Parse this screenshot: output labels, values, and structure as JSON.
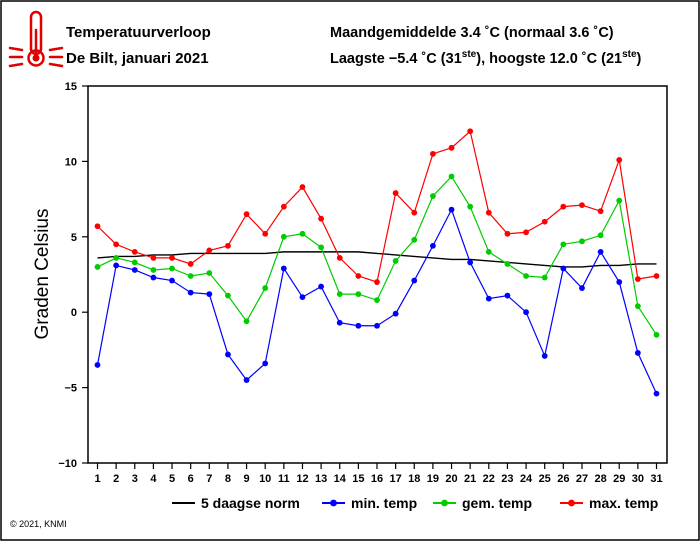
{
  "header": {
    "title": "Temperatuurverloop",
    "subtitle": "De Bilt, januari 2021",
    "line1": "Maandgemiddelde 3.4 ˚C (normaal 3.6 ˚C)",
    "line2_main": "Laagste −5.4 ˚C (31",
    "line2_sup1": "ste",
    "line2_mid": "), hoogste 12.0 ˚C (21",
    "line2_sup2": "ste",
    "line2_end": ")"
  },
  "footer": {
    "copyright": "© 2021, KNMI"
  },
  "chart_data": {
    "type": "line",
    "title": "",
    "xlabel": "",
    "ylabel": "Graden Celsius",
    "xlim": [
      1,
      31
    ],
    "ylim": [
      -10,
      15
    ],
    "yticks": [
      -10,
      -5,
      0,
      5,
      10,
      15
    ],
    "x": [
      1,
      2,
      3,
      4,
      5,
      6,
      7,
      8,
      9,
      10,
      11,
      12,
      13,
      14,
      15,
      16,
      17,
      18,
      19,
      20,
      21,
      22,
      23,
      24,
      25,
      26,
      27,
      28,
      29,
      30,
      31
    ],
    "grid": false,
    "legend_position": "bottom",
    "series": [
      {
        "name": "5 daagse norm",
        "color": "#000000",
        "marker": false,
        "values": [
          3.6,
          3.7,
          3.7,
          3.8,
          3.8,
          3.9,
          3.9,
          3.9,
          3.9,
          3.9,
          4.0,
          4.0,
          4.0,
          4.0,
          4.0,
          3.9,
          3.8,
          3.7,
          3.6,
          3.5,
          3.5,
          3.4,
          3.3,
          3.2,
          3.1,
          3.0,
          3.0,
          3.1,
          3.1,
          3.2,
          3.2
        ]
      },
      {
        "name": "min. temp",
        "color": "#0000ff",
        "marker": true,
        "values": [
          -3.5,
          3.1,
          2.8,
          2.3,
          2.1,
          1.3,
          1.2,
          -2.8,
          -4.5,
          -3.4,
          2.9,
          1.0,
          1.7,
          -0.7,
          -0.9,
          -0.9,
          -0.1,
          2.1,
          4.4,
          6.8,
          3.3,
          0.9,
          1.1,
          0.0,
          -2.9,
          2.9,
          1.6,
          4.0,
          2.0,
          -2.7,
          -5.4
        ]
      },
      {
        "name": "gem. temp",
        "color": "#00cc00",
        "marker": true,
        "values": [
          3.0,
          3.6,
          3.3,
          2.8,
          2.9,
          2.4,
          2.6,
          1.1,
          -0.6,
          1.6,
          5.0,
          5.2,
          4.3,
          1.2,
          1.2,
          0.8,
          3.4,
          4.8,
          7.7,
          9.0,
          7.0,
          4.0,
          3.2,
          2.4,
          2.3,
          4.5,
          4.7,
          5.1,
          7.4,
          0.4,
          -1.5
        ]
      },
      {
        "name": "max. temp",
        "color": "#ff0000",
        "marker": true,
        "values": [
          5.7,
          4.5,
          4.0,
          3.6,
          3.6,
          3.2,
          4.1,
          4.4,
          6.5,
          5.2,
          7.0,
          8.3,
          6.2,
          3.6,
          2.4,
          2.0,
          7.9,
          6.6,
          10.5,
          10.9,
          12.0,
          6.6,
          5.2,
          5.3,
          6.0,
          7.0,
          7.1,
          6.7,
          10.1,
          2.2,
          2.4
        ]
      }
    ]
  }
}
